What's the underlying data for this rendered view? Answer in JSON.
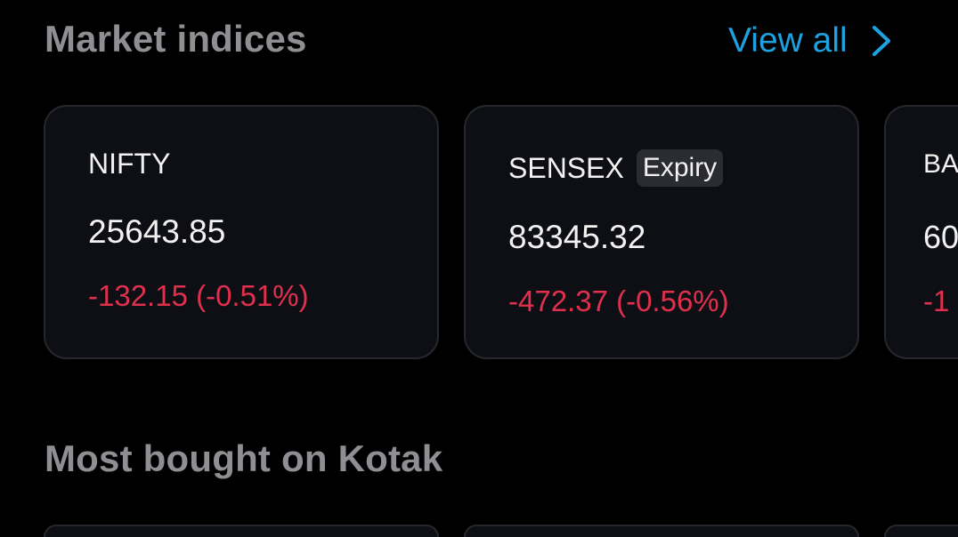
{
  "market_indices": {
    "title": "Market indices",
    "view_all_label": "View all",
    "cards": [
      {
        "name": "NIFTY",
        "badge": "",
        "value": "25643.85",
        "change": "-132.15 (-0.51%)"
      },
      {
        "name": "SENSEX",
        "badge": "Expiry",
        "value": "83345.32",
        "change": "-472.37 (-0.56%)"
      },
      {
        "name": "BA",
        "badge": "",
        "value": "60",
        "change": "-1"
      }
    ]
  },
  "most_bought": {
    "title": "Most bought on Kotak"
  },
  "colors": {
    "accent": "#1ea1e0",
    "negative": "#e0304e",
    "card_bg": "#0d0f14"
  }
}
